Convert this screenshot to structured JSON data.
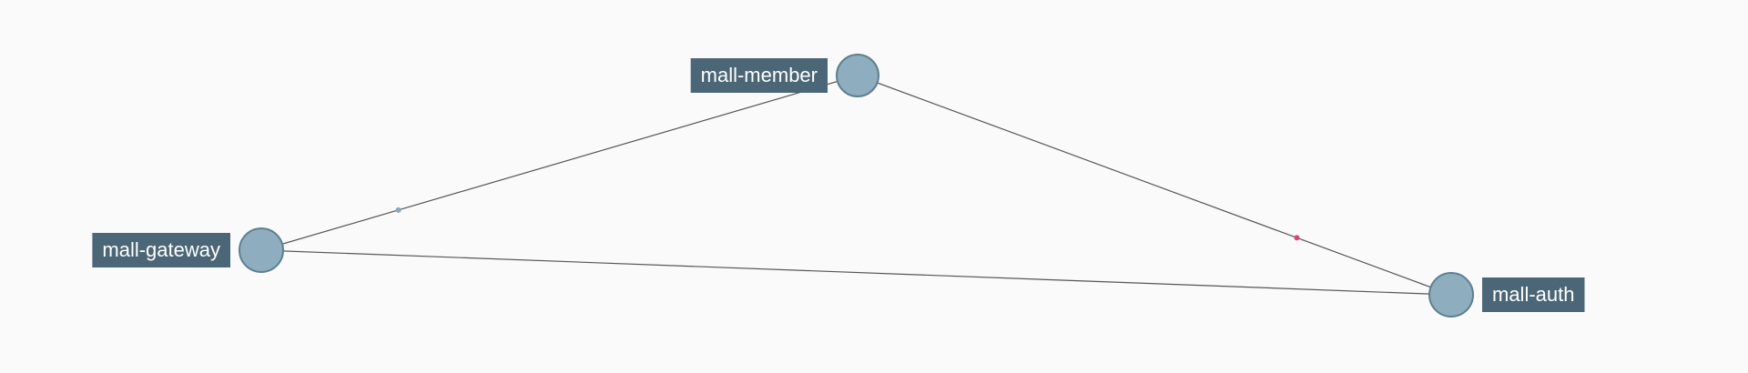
{
  "graph": {
    "nodes": [
      {
        "id": "mall-member",
        "label": "mall-member",
        "label_side": "left"
      },
      {
        "id": "mall-gateway",
        "label": "mall-gateway",
        "label_side": "left"
      },
      {
        "id": "mall-auth",
        "label": "mall-auth",
        "label_side": "right"
      }
    ],
    "edges": [
      {
        "from": "mall-gateway",
        "to": "mall-member",
        "marker_color": "#8aa6b8"
      },
      {
        "from": "mall-member",
        "to": "mall-auth",
        "marker_color": "#d9467a"
      },
      {
        "from": "mall-gateway",
        "to": "mall-auth",
        "marker_color": null
      }
    ],
    "colors": {
      "node_fill": "#8eaebf",
      "node_stroke": "#5e7f8f",
      "label_bg": "#4b6676",
      "label_text": "#ffffff",
      "edge": "#555555",
      "background": "#fafafb"
    }
  }
}
